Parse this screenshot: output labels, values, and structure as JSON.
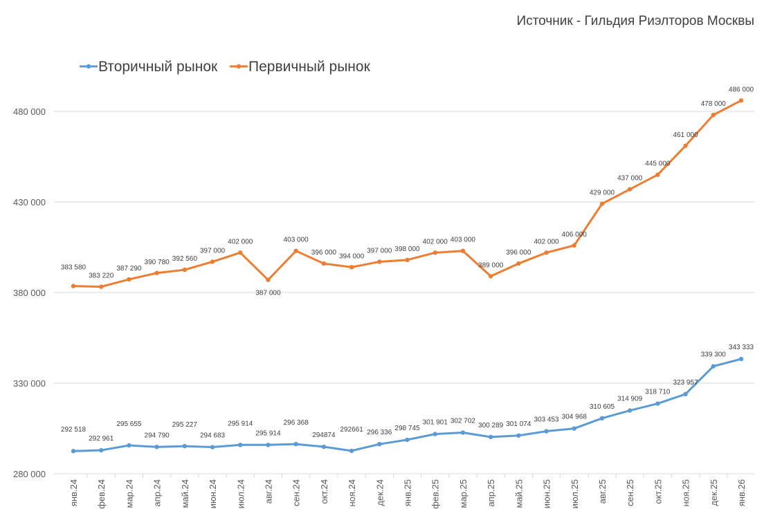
{
  "source": "Источник - Гильдия Риэлторов Москвы",
  "chart_data": {
    "type": "line",
    "title": "",
    "xlabel": "",
    "ylabel": "",
    "ylim": [
      280000,
      500000
    ],
    "yticks": [
      280000,
      330000,
      380000,
      430000,
      480000
    ],
    "ytick_labels": [
      "280 000",
      "330 000",
      "380 000",
      "430 000",
      "480 000"
    ],
    "grid": true,
    "legend_position": "top-left",
    "categories": [
      "янв.24",
      "фев.24",
      "мар.24",
      "апр.24",
      "май.24",
      "июн.24",
      "июл.24",
      "авг.24",
      "сен.24",
      "окт.24",
      "ноя.24",
      "дек.24",
      "янв.25",
      "фев.25",
      "мар.25",
      "апр.25",
      "май.25",
      "июн.25",
      "июл.25",
      "авг.25",
      "сен.25",
      "окт.25",
      "ноя.25",
      "дек.25",
      "янв.26"
    ],
    "series": [
      {
        "name": "Вторичный рынок",
        "color": "#5B9BD5",
        "values": [
          292518,
          292961,
          295655,
          294790,
          295227,
          294683,
          295914,
          295914,
          296368,
          294874,
          292661,
          296336,
          298745,
          301901,
          302702,
          300289,
          301074,
          303453,
          304968,
          310605,
          314909,
          318710,
          323957,
          339300,
          343333
        ],
        "labels": [
          "292 518",
          "292 961",
          "295 655",
          "294 790",
          "295 227",
          "294 683",
          "295 914",
          "295 914",
          "296 368",
          "294874",
          "292661",
          "296 336",
          "298 745",
          "301 901",
          "302 702",
          "300 289",
          "301 074",
          "303 453",
          "304 968",
          "310 605",
          "314 909",
          "318 710",
          "323 957",
          "339 300",
          "343 333"
        ]
      },
      {
        "name": "Первичный рынок",
        "color": "#ED7D31",
        "values": [
          383580,
          383220,
          387290,
          390780,
          392560,
          397000,
          402000,
          387000,
          403000,
          396000,
          394000,
          397000,
          398000,
          402000,
          403000,
          389000,
          396000,
          402000,
          406000,
          429000,
          437000,
          445000,
          461000,
          478000,
          486000
        ],
        "labels": [
          "383 580",
          "383 220",
          "387 290",
          "390 780",
          "392 560",
          "397 000",
          "402 000",
          "387 000",
          "403 000",
          "396 000",
          "394 000",
          "397 000",
          "398 000",
          "402 000",
          "403 000",
          "389 000",
          "396 000",
          "402 000",
          "406 000",
          "429 000",
          "437 000",
          "445 000",
          "461 000",
          "478 000",
          "486 000"
        ]
      }
    ]
  }
}
